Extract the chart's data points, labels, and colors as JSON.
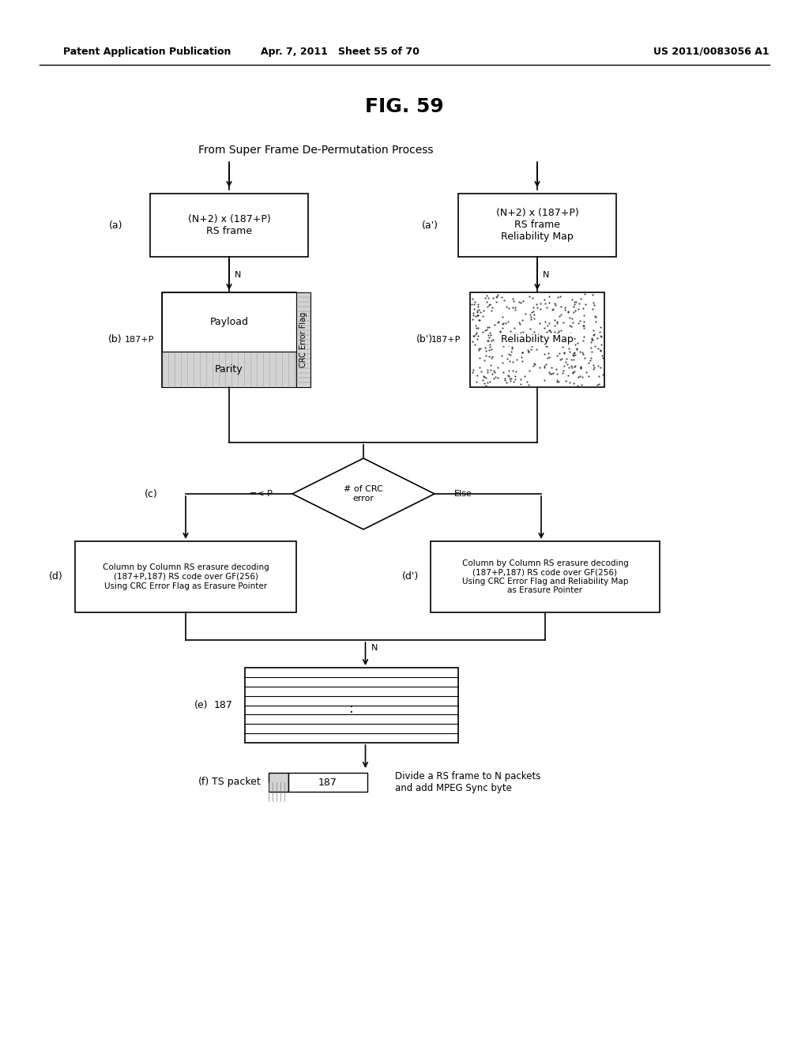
{
  "header_left": "Patent Application Publication",
  "header_mid": "Apr. 7, 2011   Sheet 55 of 70",
  "header_right": "US 2011/0083056 A1",
  "fig_title": "FIG. 59",
  "top_label": "From Super Frame De-Permutation Process",
  "box_a_text": "(N+2) x (187+P)\nRS frame",
  "label_a": "(a)",
  "box_ap_text": "(N+2) x (187+P)\nRS frame\nReliability Map",
  "label_ap": "(a')",
  "label_b": "(b)  187+P",
  "label_bp": "(b')  187+P",
  "payload_text": "Payload",
  "parity_text": "Parity",
  "crc_flag_text": "CRC Error Flag",
  "reliability_map_text": "Reliability Map",
  "diamond_text": "# of CRC\nerror",
  "label_c": "(c)",
  "left_branch": "=< P",
  "right_branch": "Else",
  "box_d_text": "Column by Column RS erasure decoding\n(187+P,187) RS code over GF(256)\nUsing CRC Error Flag as Erasure Pointer",
  "label_d": "(d)",
  "box_dp_text": "Column by Column RS erasure decoding\n(187+P,187) RS code over GF(256)\nUsing CRC Error Flag and Reliability Map\nas Erasure Pointer",
  "label_dp": "(d')",
  "label_e": "(e)  187",
  "label_f": "(f)",
  "ts_packet_text": "TS packet",
  "ts_187": "187",
  "note_f": "Divide a RS frame to N packets\nand add MPEG Sync byte",
  "bg_color": "#ffffff",
  "text_color": "#000000",
  "box_stroke": "#000000",
  "N_label": "N"
}
